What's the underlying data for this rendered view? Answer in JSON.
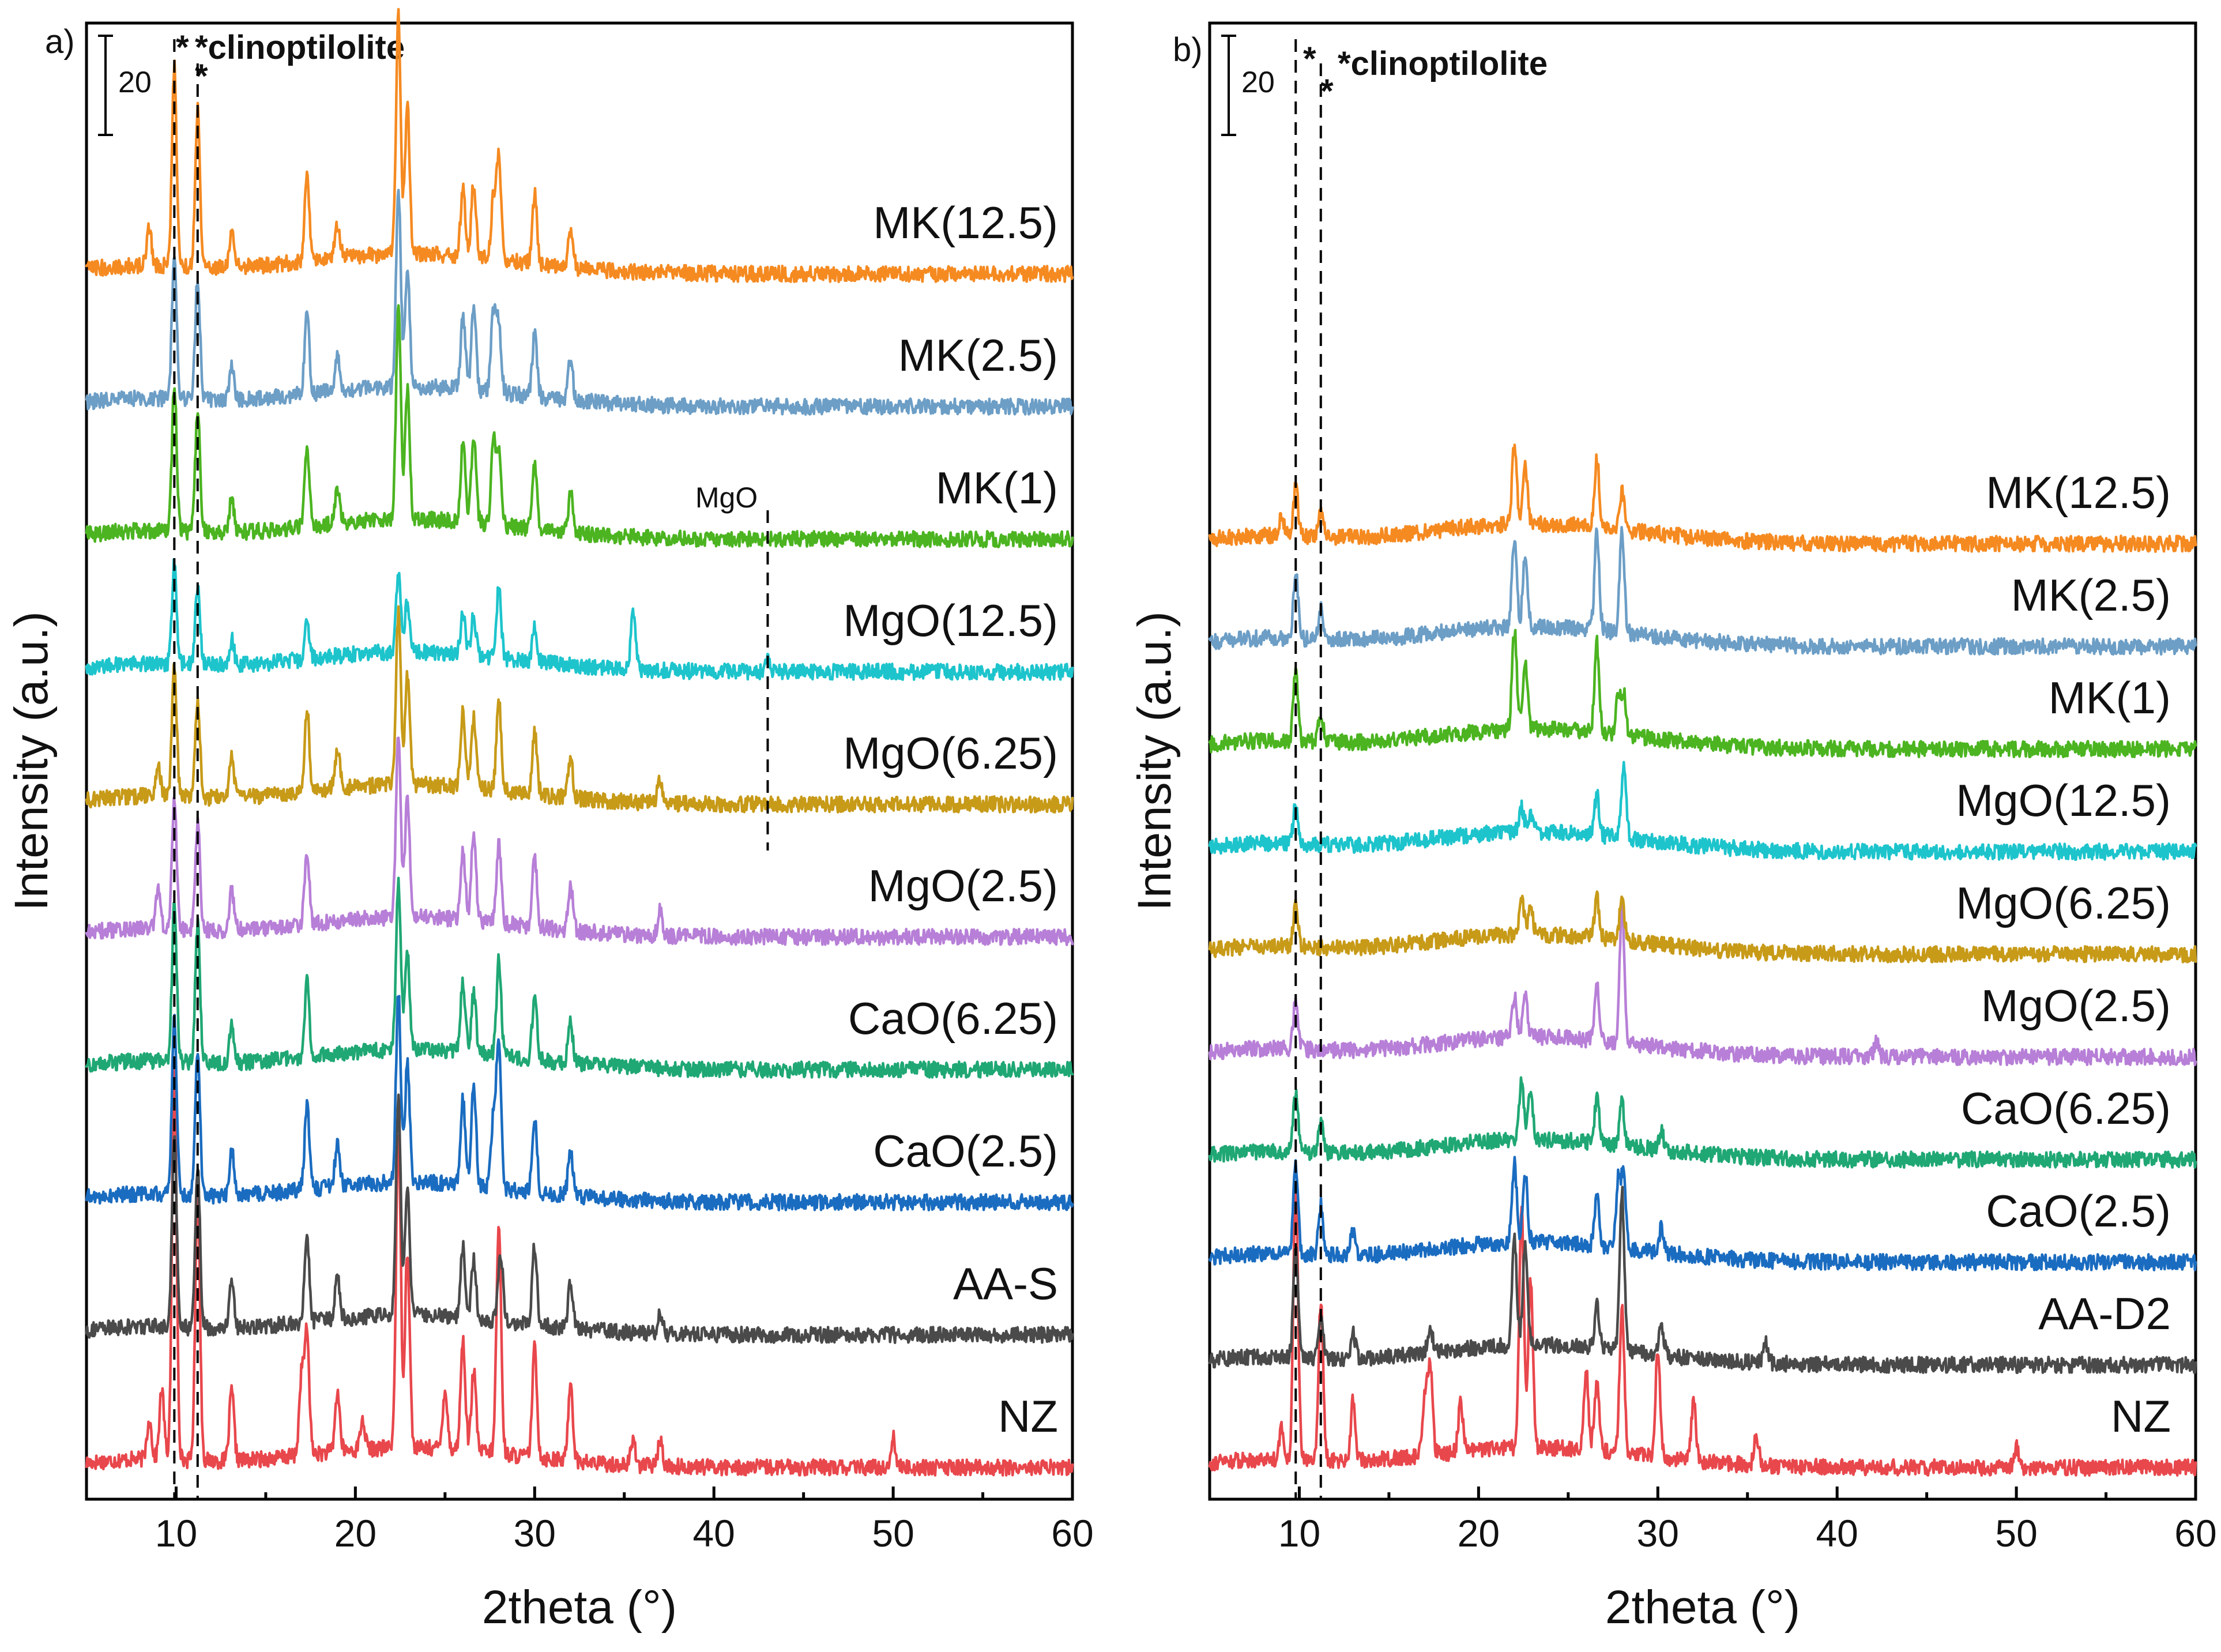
{
  "figure": {
    "axis_title_x": "2theta (°)",
    "axis_title_y": "Intensity (a.u.)",
    "clinoptilolite_note": "*clinoptilolite",
    "star": "*",
    "scale_value": "20",
    "mgo_marker": "MgO",
    "colors": {
      "NZ": "#e8474c",
      "AA": "#4a4a4a",
      "CaO(2.5)": "#1a6cc0",
      "CaO(6.25)": "#1fa774",
      "MgO(2.5)": "#b77fd7",
      "MgO(6.25)": "#c79a18",
      "MgO(12.5)": "#1dc4cc",
      "MK(1)": "#4bb420",
      "MK(2.5)": "#6c9ec6",
      "MK(12.5)": "#f58a21"
    }
  },
  "chart_data": [
    {
      "panel_label": "a)",
      "type": "line",
      "title": "",
      "xlabel": "2theta (°)",
      "ylabel": "Intensity (a.u.)",
      "xlim": [
        5,
        60
      ],
      "xticks": [
        10,
        20,
        30,
        40,
        50,
        60
      ],
      "x_tick_labels": [
        "10",
        "20",
        "30",
        "40",
        "50",
        "60"
      ],
      "y_ticks": "none (stacked, offset traces)",
      "reference_lines_2theta": [
        9.9,
        11.2
      ],
      "mgo_reference_2theta": 43.0,
      "scale_bar_intensity": 20,
      "series": [
        {
          "name": "NZ",
          "offset": 0,
          "peaks": [
            [
              8.5,
              8
            ],
            [
              9.2,
              14
            ],
            [
              9.9,
              78
            ],
            [
              11.2,
              54
            ],
            [
              13.1,
              14
            ],
            [
              17.0,
              16
            ],
            [
              17.3,
              24
            ],
            [
              19.0,
              12
            ],
            [
              20.4,
              6
            ],
            [
              22.4,
              64
            ],
            [
              22.9,
              40
            ],
            [
              25.0,
              12
            ],
            [
              26.0,
              22
            ],
            [
              26.6,
              16
            ],
            [
              28.0,
              46
            ],
            [
              30.0,
              22
            ],
            [
              32.0,
              16
            ],
            [
              35.5,
              5
            ],
            [
              37.0,
              5
            ],
            [
              50.0,
              6
            ]
          ]
        },
        {
          "name": "AA-S",
          "offset": 1,
          "peaks": [
            [
              9.9,
              38
            ],
            [
              11.2,
              33
            ],
            [
              13.1,
              10
            ],
            [
              17.3,
              17
            ],
            [
              19.0,
              9
            ],
            [
              22.4,
              44
            ],
            [
              22.9,
              26
            ],
            [
              26.0,
              14
            ],
            [
              26.6,
              12
            ],
            [
              28.1,
              14
            ],
            [
              30.0,
              16
            ],
            [
              32.0,
              9
            ],
            [
              37.0,
              4
            ]
          ]
        },
        {
          "name": "CaO(2.5)",
          "offset": 2,
          "peaks": [
            [
              9.9,
              36
            ],
            [
              11.2,
              30
            ],
            [
              13.1,
              9
            ],
            [
              17.3,
              17
            ],
            [
              19.0,
              9
            ],
            [
              22.4,
              38
            ],
            [
              22.9,
              24
            ],
            [
              26.0,
              17
            ],
            [
              26.6,
              21
            ],
            [
              27.7,
              14
            ],
            [
              28.0,
              30
            ],
            [
              30.0,
              15
            ],
            [
              32.0,
              9
            ]
          ]
        },
        {
          "name": "CaO(6.25)",
          "offset": 3,
          "peaks": [
            [
              9.9,
              32
            ],
            [
              11.2,
              28
            ],
            [
              13.1,
              8
            ],
            [
              17.3,
              15
            ],
            [
              22.4,
              34
            ],
            [
              22.9,
              20
            ],
            [
              26.0,
              14
            ],
            [
              26.6,
              12
            ],
            [
              28.0,
              19
            ],
            [
              30.0,
              13
            ],
            [
              32.0,
              8
            ]
          ]
        },
        {
          "name": "MgO(2.5)",
          "offset": 4,
          "peaks": [
            [
              9.0,
              8
            ],
            [
              9.9,
              26
            ],
            [
              11.2,
              22
            ],
            [
              13.1,
              8
            ],
            [
              17.3,
              15
            ],
            [
              22.4,
              37
            ],
            [
              22.9,
              24
            ],
            [
              26.0,
              14
            ],
            [
              26.6,
              18
            ],
            [
              28.0,
              16
            ],
            [
              30.0,
              14
            ],
            [
              32.0,
              9
            ],
            [
              37.0,
              5
            ]
          ]
        },
        {
          "name": "MgO(6.25)",
          "offset": 5,
          "peaks": [
            [
              9.0,
              6
            ],
            [
              9.9,
              26
            ],
            [
              11.2,
              20
            ],
            [
              13.1,
              8
            ],
            [
              17.3,
              17
            ],
            [
              19.0,
              8
            ],
            [
              22.4,
              35
            ],
            [
              22.9,
              22
            ],
            [
              26.0,
              16
            ],
            [
              26.6,
              14
            ],
            [
              28.0,
              18
            ],
            [
              30.0,
              13
            ],
            [
              32.0,
              8
            ],
            [
              37.0,
              5
            ]
          ]
        },
        {
          "name": "MgO(12.5)",
          "offset": 6,
          "peaks": [
            [
              9.9,
              20
            ],
            [
              11.2,
              16
            ],
            [
              13.1,
              5
            ],
            [
              17.3,
              8
            ],
            [
              22.4,
              16
            ],
            [
              22.9,
              10
            ],
            [
              26.0,
              8
            ],
            [
              26.6,
              8
            ],
            [
              28.0,
              14
            ],
            [
              30.0,
              7
            ],
            [
              35.5,
              12
            ],
            [
              43.0,
              2
            ]
          ]
        },
        {
          "name": "MK(1)",
          "offset": 7,
          "peaks": [
            [
              9.9,
              30
            ],
            [
              11.2,
              25
            ],
            [
              13.1,
              7
            ],
            [
              17.3,
              16
            ],
            [
              19.0,
              7
            ],
            [
              22.4,
              42
            ],
            [
              22.9,
              26
            ],
            [
              26.0,
              16
            ],
            [
              26.6,
              18
            ],
            [
              27.7,
              16
            ],
            [
              28.0,
              14
            ],
            [
              30.0,
              14
            ],
            [
              32.0,
              8
            ]
          ]
        },
        {
          "name": "MK(2.5)",
          "offset": 8,
          "peaks": [
            [
              9.9,
              30
            ],
            [
              11.2,
              25
            ],
            [
              13.1,
              7
            ],
            [
              17.3,
              16
            ],
            [
              19.0,
              7
            ],
            [
              22.4,
              40
            ],
            [
              22.9,
              24
            ],
            [
              26.0,
              15
            ],
            [
              26.6,
              17
            ],
            [
              27.7,
              16
            ],
            [
              28.0,
              14
            ],
            [
              30.0,
              13
            ],
            [
              32.0,
              8
            ]
          ]
        },
        {
          "name": "MK(12.5)",
          "offset": 9,
          "peaks": [
            [
              8.5,
              8
            ],
            [
              9.9,
              40
            ],
            [
              11.2,
              32
            ],
            [
              13.1,
              7
            ],
            [
              17.3,
              17
            ],
            [
              19.0,
              7
            ],
            [
              22.4,
              48
            ],
            [
              22.9,
              30
            ],
            [
              26.0,
              14
            ],
            [
              26.6,
              15
            ],
            [
              27.7,
              12
            ],
            [
              28.0,
              20
            ],
            [
              30.0,
              14
            ],
            [
              32.0,
              8
            ]
          ]
        }
      ]
    },
    {
      "panel_label": "b)",
      "type": "line",
      "title": "",
      "xlabel": "2theta (°)",
      "ylabel": "Intensity (a.u.)",
      "xlim": [
        5,
        60
      ],
      "xticks": [
        10,
        20,
        30,
        40,
        50,
        60
      ],
      "x_tick_labels": [
        "10",
        "20",
        "30",
        "40",
        "50",
        "60"
      ],
      "y_ticks": "none (stacked, offset traces)",
      "reference_lines_2theta": [
        9.8,
        11.2
      ],
      "scale_bar_intensity": 20,
      "series": [
        {
          "name": "NZ",
          "offset": 0,
          "peaks": [
            [
              9.0,
              6
            ],
            [
              9.8,
              56
            ],
            [
              11.2,
              32
            ],
            [
              13.0,
              12
            ],
            [
              17.0,
              12
            ],
            [
              17.3,
              18
            ],
            [
              19.0,
              10
            ],
            [
              22.4,
              48
            ],
            [
              22.9,
              34
            ],
            [
              26.0,
              16
            ],
            [
              26.6,
              14
            ],
            [
              28.0,
              30
            ],
            [
              30.0,
              22
            ],
            [
              32.0,
              12
            ],
            [
              35.5,
              6
            ],
            [
              50.0,
              4
            ]
          ]
        },
        {
          "name": "AA-D2",
          "offset": 1,
          "peaks": [
            [
              9.8,
              22
            ],
            [
              11.2,
              9
            ],
            [
              13.0,
              5
            ],
            [
              17.3,
              5
            ],
            [
              22.0,
              22
            ],
            [
              22.6,
              20
            ],
            [
              26.6,
              9
            ],
            [
              28.0,
              32
            ],
            [
              30.2,
              6
            ],
            [
              36.0,
              4
            ]
          ]
        },
        {
          "name": "CaO(2.5)",
          "offset": 2,
          "peaks": [
            [
              9.8,
              18
            ],
            [
              11.2,
              10
            ],
            [
              13.0,
              5
            ],
            [
              22.0,
              16
            ],
            [
              22.6,
              14
            ],
            [
              26.6,
              10
            ],
            [
              27.8,
              14
            ],
            [
              28.1,
              14
            ],
            [
              30.2,
              5
            ]
          ]
        },
        {
          "name": "CaO(6.25)",
          "offset": 3,
          "peaks": [
            [
              9.8,
              12
            ],
            [
              11.2,
              6
            ],
            [
              22.4,
              12
            ],
            [
              22.9,
              10
            ],
            [
              26.6,
              9
            ],
            [
              28.0,
              9
            ],
            [
              30.2,
              4
            ]
          ]
        },
        {
          "name": "MgO(2.5)",
          "offset": 4,
          "peaks": [
            [
              9.8,
              10
            ],
            [
              22.0,
              8
            ],
            [
              22.6,
              8
            ],
            [
              26.6,
              11
            ],
            [
              28.0,
              28
            ],
            [
              42.2,
              3
            ]
          ]
        },
        {
          "name": "MgO(6.25)",
          "offset": 5,
          "peaks": [
            [
              9.8,
              8
            ],
            [
              22.4,
              7
            ],
            [
              22.9,
              6
            ],
            [
              26.6,
              8
            ],
            [
              28.0,
              9
            ]
          ]
        },
        {
          "name": "MgO(12.5)",
          "offset": 6,
          "peaks": [
            [
              9.8,
              8
            ],
            [
              22.4,
              5
            ],
            [
              22.9,
              4
            ],
            [
              26.6,
              8
            ],
            [
              28.1,
              14
            ]
          ]
        },
        {
          "name": "MK(1)",
          "offset": 7,
          "peaks": [
            [
              9.8,
              14
            ],
            [
              11.2,
              6
            ],
            [
              22.0,
              20
            ],
            [
              22.6,
              14
            ],
            [
              26.6,
              18
            ],
            [
              27.8,
              8
            ],
            [
              28.1,
              8
            ]
          ]
        },
        {
          "name": "MK(2.5)",
          "offset": 8,
          "peaks": [
            [
              9.8,
              14
            ],
            [
              11.2,
              6
            ],
            [
              22.0,
              18
            ],
            [
              22.6,
              14
            ],
            [
              26.6,
              20
            ],
            [
              28.0,
              20
            ]
          ]
        },
        {
          "name": "MK(12.5)",
          "offset": 9,
          "peaks": [
            [
              9.0,
              4
            ],
            [
              9.8,
              10
            ],
            [
              11.2,
              5
            ],
            [
              22.0,
              16
            ],
            [
              22.6,
              12
            ],
            [
              26.6,
              14
            ],
            [
              28.0,
              8
            ]
          ]
        }
      ]
    }
  ]
}
